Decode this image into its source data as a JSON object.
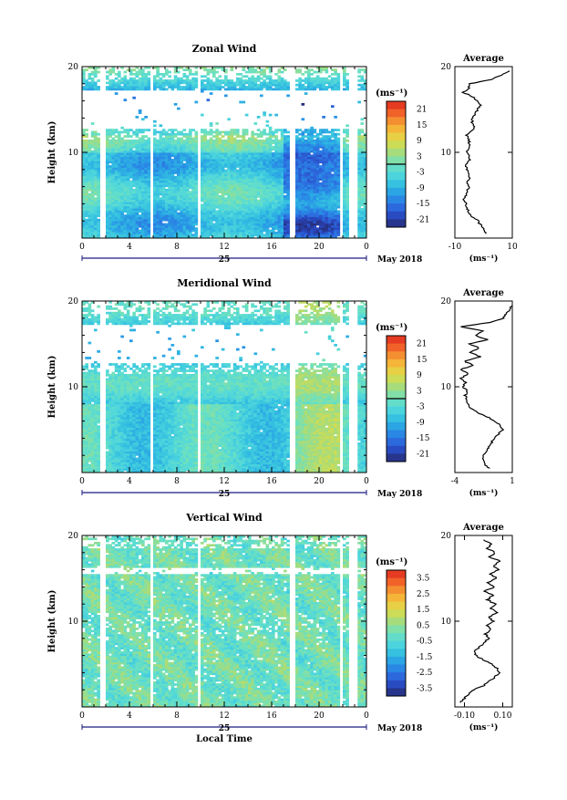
{
  "chart_data": [
    {
      "type": "heatmap",
      "title": "Zonal Wind",
      "ylabel": "Height (km)",
      "xlabel": "",
      "ylim": [
        0,
        20
      ],
      "xlim": [
        0,
        24
      ],
      "xticks": [
        "0",
        "4",
        "8",
        "12",
        "16",
        "20",
        "0"
      ],
      "yticks": [
        "20",
        "10"
      ],
      "date_day": "25",
      "date_label": "May 2018",
      "colorbar": {
        "unit": "(ms⁻¹)",
        "range": [
          -24,
          24
        ],
        "ticks": [
          "21",
          "15",
          "9",
          "3",
          "-3",
          "-9",
          "-15",
          "-21"
        ],
        "contour_value": 0
      },
      "profile": {
        "title": "Average",
        "xlabel": "(ms⁻¹)",
        "xlim": [
          -10,
          10
        ],
        "xticks": [
          "-10",
          "10"
        ],
        "ytick_top": "20",
        "ytick_mid": "10",
        "heights": [
          0.5,
          1,
          1.5,
          2,
          2.5,
          3,
          3.5,
          4,
          4.5,
          5,
          5.5,
          6,
          6.5,
          7,
          7.5,
          8,
          8.5,
          9,
          9.5,
          10,
          10.5,
          11,
          11.5,
          12,
          12.5,
          13,
          13.5,
          14,
          14.5,
          15,
          15.5,
          16,
          16.5,
          17,
          17.5,
          18,
          18.5,
          19,
          19.5
        ],
        "values": [
          1,
          0,
          -1,
          -2,
          -4,
          -5,
          -6,
          -6,
          -7,
          -6,
          -6,
          -5,
          -6,
          -5,
          -5,
          -6,
          -6,
          -5,
          -5,
          -6,
          -5,
          -5,
          -5,
          -6,
          -4,
          -3,
          -4,
          -4,
          -3,
          -2,
          -1,
          -2,
          -4,
          -7,
          -5,
          -5,
          3,
          6,
          9
        ]
      }
    },
    {
      "type": "heatmap",
      "title": "Meridional Wind",
      "ylabel": "Height (km)",
      "xlabel": "",
      "ylim": [
        0,
        20
      ],
      "xlim": [
        0,
        24
      ],
      "xticks": [
        "0",
        "4",
        "8",
        "12",
        "16",
        "20",
        "0"
      ],
      "yticks": [
        "20",
        "10"
      ],
      "date_day": "25",
      "date_label": "May 2018",
      "colorbar": {
        "unit": "(ms⁻¹)",
        "range": [
          -24,
          24
        ],
        "ticks": [
          "21",
          "15",
          "9",
          "3",
          "-3",
          "-9",
          "-15",
          "-21"
        ],
        "contour_value": 0
      },
      "profile": {
        "title": "Average",
        "xlabel": "(ms⁻¹)",
        "xlim": [
          -4,
          1
        ],
        "xticks": [
          "-4",
          "1"
        ],
        "ytick_top": "20",
        "ytick_mid": "10",
        "heights": [
          0.5,
          1,
          1.5,
          2,
          2.5,
          3,
          3.5,
          4,
          4.5,
          5,
          5.5,
          6,
          6.5,
          7,
          7.5,
          8,
          8.5,
          9,
          9.5,
          10,
          10.5,
          11,
          11.5,
          12,
          12.5,
          13,
          13.5,
          14,
          14.5,
          15,
          15.5,
          16,
          16.5,
          17,
          17.5,
          18,
          18.5,
          19,
          19.5
        ],
        "values": [
          -1,
          -1.4,
          -1.6,
          -1.5,
          -1.2,
          -1.0,
          -0.8,
          -0.6,
          -0.2,
          0.2,
          0.0,
          -0.5,
          -1.2,
          -2.0,
          -2.6,
          -2.9,
          -3.0,
          -3.1,
          -2.9,
          -3.3,
          -3.1,
          -3.5,
          -2.8,
          -3.5,
          -2.4,
          -3.2,
          -1.8,
          -2.6,
          -1.9,
          -2.7,
          -1.2,
          -2.2,
          -1.6,
          -3.5,
          -1.0,
          0.2,
          0.5,
          0.8,
          1.0
        ]
      }
    },
    {
      "type": "heatmap",
      "title": "Vertical Wind",
      "ylabel": "Height (km)",
      "xlabel": "Local Time",
      "ylim": [
        0,
        20
      ],
      "xlim": [
        0,
        24
      ],
      "xticks": [
        "0",
        "4",
        "8",
        "12",
        "16",
        "20",
        "0"
      ],
      "yticks": [
        "20",
        "10"
      ],
      "date_day": "25",
      "date_label": "May 2018",
      "colorbar": {
        "unit": "(ms⁻¹)",
        "range": [
          -4,
          4
        ],
        "ticks": [
          "3.5",
          "2.5",
          "1.5",
          "0.5",
          "-0.5",
          "-1.5",
          "-2.5",
          "-3.5"
        ]
      },
      "profile": {
        "title": "Average",
        "xlabel": "(ms⁻¹)",
        "xlim": [
          -0.15,
          0.15
        ],
        "xticks": [
          "-0.10",
          "0.10"
        ],
        "ytick_top": "20",
        "ytick_mid": "10",
        "heights": [
          0.5,
          1,
          1.5,
          2,
          2.5,
          3,
          3.5,
          4,
          4.5,
          5,
          5.5,
          6,
          6.5,
          7,
          7.5,
          8,
          8.5,
          9,
          9.5,
          10,
          10.5,
          11,
          11.5,
          12,
          12.5,
          13,
          13.5,
          14,
          14.5,
          15,
          15.5,
          16,
          16.5,
          17,
          17.5,
          18,
          18.5,
          19,
          19.5
        ],
        "values": [
          -0.12,
          -0.1,
          -0.08,
          -0.05,
          0.0,
          0.03,
          0.06,
          0.08,
          0.07,
          0.04,
          0.0,
          -0.04,
          -0.05,
          -0.02,
          0.0,
          0.03,
          0.01,
          0.04,
          0.02,
          0.05,
          0.03,
          0.07,
          0.04,
          0.06,
          0.02,
          0.05,
          0.0,
          0.06,
          0.02,
          0.07,
          0.03,
          0.08,
          0.05,
          0.09,
          0.03,
          0.06,
          0.02,
          0.04,
          0.0
        ]
      }
    }
  ]
}
